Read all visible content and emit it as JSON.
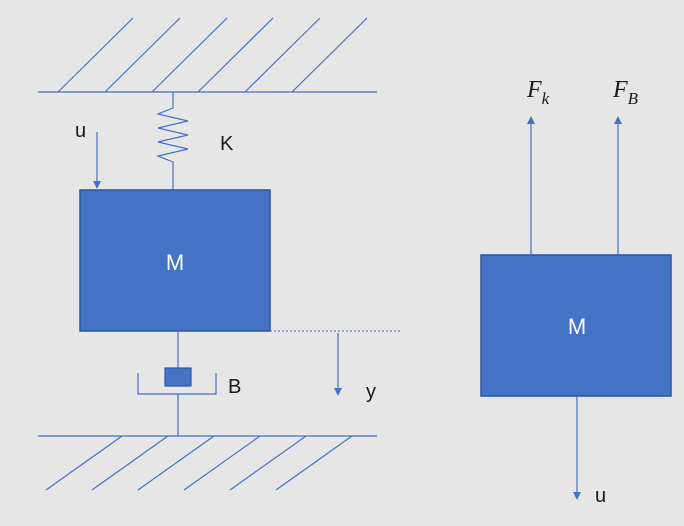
{
  "colors": {
    "background": "#e7e6e6",
    "line": "#4472c4",
    "mass_fill": "#4472c4",
    "mass_border": "#2f5597",
    "mass_text": "#ffffff",
    "label_text": "#1a1a1a"
  },
  "left_system": {
    "mass_label": "M",
    "spring_label": "K",
    "damper_label": "B",
    "input_label": "u",
    "displacement_label": "y"
  },
  "free_body": {
    "mass_label": "M",
    "spring_force": {
      "symbol": "F",
      "subscript": "k"
    },
    "damper_force": {
      "symbol": "F",
      "subscript": "B"
    },
    "input_label": "u"
  }
}
